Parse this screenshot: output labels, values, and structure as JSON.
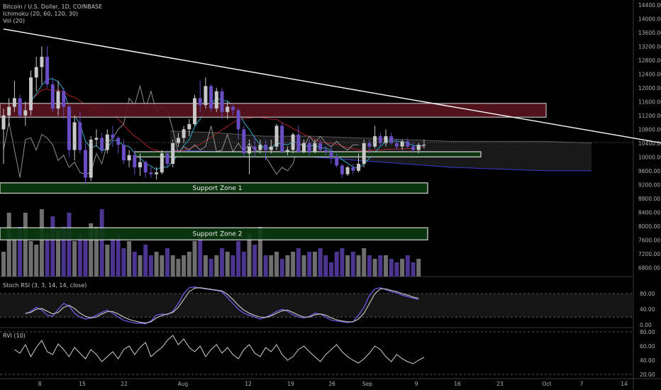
{
  "header": {
    "symbol": "Bitcoin / U.S. Dollar, 1D, COINBASE",
    "ichimoku": "Ichimoku (20, 60, 120, 30)",
    "volume": "Vol (20)"
  },
  "stoch_title": "Stoch RSI (3, 3, 14, 14, close)",
  "rvi_title": "RVI (10)",
  "colors": {
    "up": "#c8c8c8",
    "down": "#6a4cc4",
    "resistance_fill": "#5a1420",
    "resistance_border": "#c0c0c0",
    "support_fill": "#0c3a10",
    "support_border": "#e0e0e0",
    "trendline": "#ffffff",
    "tenkan": "#2aa7c9",
    "kijun": "#a8202a",
    "lagging": "#909090",
    "cloud": "#1c1c1c"
  },
  "chart_data": [
    {
      "type": "candlestick",
      "title": "Bitcoin / U.S. Dollar, 1D, COINBASE",
      "x_ticks": [
        "8",
        "15",
        "22",
        "Aug",
        "12",
        "19",
        "26",
        "Sep",
        "9",
        "16",
        "23",
        "Oct",
        "7",
        "14"
      ],
      "y_ticks": [
        6800,
        7200,
        7600,
        8000,
        8400,
        8800,
        9200,
        9600,
        10000,
        10400,
        10800,
        11200,
        11600,
        12000,
        12400,
        12800,
        13200,
        13600,
        14000,
        14400
      ],
      "ylim": [
        6600,
        14500
      ],
      "candles": [
        {
          "o": 10800,
          "h": 11400,
          "l": 9800,
          "c": 11200
        },
        {
          "o": 11200,
          "h": 11700,
          "l": 10900,
          "c": 11450
        },
        {
          "o": 11450,
          "h": 12200,
          "l": 11300,
          "c": 11700
        },
        {
          "o": 11700,
          "h": 11800,
          "l": 11100,
          "c": 11200
        },
        {
          "o": 11200,
          "h": 11600,
          "l": 10900,
          "c": 11350
        },
        {
          "o": 11350,
          "h": 12500,
          "l": 11200,
          "c": 12300
        },
        {
          "o": 12300,
          "h": 12900,
          "l": 11900,
          "c": 12600
        },
        {
          "o": 12600,
          "h": 13200,
          "l": 12100,
          "c": 12900
        },
        {
          "o": 12900,
          "h": 13200,
          "l": 12000,
          "c": 12100
        },
        {
          "o": 12100,
          "h": 12300,
          "l": 11300,
          "c": 11400
        },
        {
          "o": 11400,
          "h": 12200,
          "l": 11200,
          "c": 11900
        },
        {
          "o": 11900,
          "h": 12000,
          "l": 11100,
          "c": 11450
        },
        {
          "o": 11450,
          "h": 11500,
          "l": 10000,
          "c": 10200
        },
        {
          "o": 10200,
          "h": 11200,
          "l": 9900,
          "c": 11000
        },
        {
          "o": 11000,
          "h": 11300,
          "l": 10100,
          "c": 10200
        },
        {
          "o": 10200,
          "h": 10400,
          "l": 9200,
          "c": 9400
        },
        {
          "o": 9400,
          "h": 10600,
          "l": 9300,
          "c": 10500
        },
        {
          "o": 10500,
          "h": 10800,
          "l": 10300,
          "c": 10550
        },
        {
          "o": 10550,
          "h": 10700,
          "l": 10100,
          "c": 10200
        },
        {
          "o": 10200,
          "h": 10800,
          "l": 10100,
          "c": 10650
        },
        {
          "o": 10650,
          "h": 10900,
          "l": 10300,
          "c": 10550
        },
        {
          "o": 10550,
          "h": 10600,
          "l": 10100,
          "c": 10350
        },
        {
          "o": 10350,
          "h": 10500,
          "l": 9800,
          "c": 9900
        },
        {
          "o": 9900,
          "h": 10200,
          "l": 9700,
          "c": 10050
        },
        {
          "o": 10050,
          "h": 10200,
          "l": 9500,
          "c": 9700
        },
        {
          "o": 9700,
          "h": 10100,
          "l": 9450,
          "c": 9850
        },
        {
          "o": 9850,
          "h": 9900,
          "l": 9400,
          "c": 9550
        },
        {
          "o": 9550,
          "h": 9700,
          "l": 9400,
          "c": 9500
        },
        {
          "o": 9500,
          "h": 9700,
          "l": 9350,
          "c": 9550
        },
        {
          "o": 9550,
          "h": 10200,
          "l": 9500,
          "c": 10100
        },
        {
          "o": 10100,
          "h": 10200,
          "l": 9700,
          "c": 9800
        },
        {
          "o": 9800,
          "h": 10500,
          "l": 9700,
          "c": 10400
        },
        {
          "o": 10400,
          "h": 10700,
          "l": 10300,
          "c": 10550
        },
        {
          "o": 10550,
          "h": 10900,
          "l": 10400,
          "c": 10800
        },
        {
          "o": 10800,
          "h": 11100,
          "l": 10600,
          "c": 10950
        },
        {
          "o": 10950,
          "h": 11800,
          "l": 10900,
          "c": 11700
        },
        {
          "o": 11700,
          "h": 12200,
          "l": 11300,
          "c": 11500
        },
        {
          "o": 11500,
          "h": 12300,
          "l": 11400,
          "c": 12050
        },
        {
          "o": 12050,
          "h": 12100,
          "l": 11300,
          "c": 11400
        },
        {
          "o": 11400,
          "h": 12000,
          "l": 11300,
          "c": 11900
        },
        {
          "o": 11900,
          "h": 12000,
          "l": 11100,
          "c": 11300
        },
        {
          "o": 11300,
          "h": 11600,
          "l": 11100,
          "c": 11450
        },
        {
          "o": 11450,
          "h": 11500,
          "l": 11200,
          "c": 11350
        },
        {
          "o": 11350,
          "h": 11400,
          "l": 10500,
          "c": 10800
        },
        {
          "o": 10800,
          "h": 10900,
          "l": 10000,
          "c": 10100
        },
        {
          "o": 10100,
          "h": 10500,
          "l": 9500,
          "c": 10300
        },
        {
          "o": 10300,
          "h": 10600,
          "l": 10000,
          "c": 10200
        },
        {
          "o": 10200,
          "h": 10500,
          "l": 10100,
          "c": 10350
        },
        {
          "o": 10350,
          "h": 10500,
          "l": 9900,
          "c": 10200
        },
        {
          "o": 10200,
          "h": 10500,
          "l": 10100,
          "c": 10300
        },
        {
          "o": 10300,
          "h": 10950,
          "l": 10200,
          "c": 10900
        },
        {
          "o": 10900,
          "h": 11000,
          "l": 10100,
          "c": 10150
        },
        {
          "o": 10150,
          "h": 10300,
          "l": 10050,
          "c": 10200
        },
        {
          "o": 10200,
          "h": 10700,
          "l": 10100,
          "c": 10650
        },
        {
          "o": 10650,
          "h": 10900,
          "l": 10100,
          "c": 10150
        },
        {
          "o": 10150,
          "h": 10500,
          "l": 10100,
          "c": 10400
        },
        {
          "o": 10400,
          "h": 10500,
          "l": 10050,
          "c": 10150
        },
        {
          "o": 10150,
          "h": 10500,
          "l": 10100,
          "c": 10400
        },
        {
          "o": 10400,
          "h": 10500,
          "l": 10150,
          "c": 10200
        },
        {
          "o": 10200,
          "h": 10300,
          "l": 10050,
          "c": 10150
        },
        {
          "o": 10150,
          "h": 10300,
          "l": 9800,
          "c": 10000
        },
        {
          "o": 10000,
          "h": 10100,
          "l": 9700,
          "c": 9750
        },
        {
          "o": 9750,
          "h": 9800,
          "l": 9400,
          "c": 9500
        },
        {
          "o": 9500,
          "h": 9750,
          "l": 9450,
          "c": 9700
        },
        {
          "o": 9700,
          "h": 9800,
          "l": 9500,
          "c": 9600
        },
        {
          "o": 9600,
          "h": 10100,
          "l": 9550,
          "c": 9800
        },
        {
          "o": 9800,
          "h": 10500,
          "l": 9700,
          "c": 10400
        },
        {
          "o": 10400,
          "h": 10500,
          "l": 10100,
          "c": 10300
        },
        {
          "o": 10300,
          "h": 10900,
          "l": 10250,
          "c": 10600
        },
        {
          "o": 10600,
          "h": 10700,
          "l": 10300,
          "c": 10400
        },
        {
          "o": 10400,
          "h": 10800,
          "l": 10300,
          "c": 10600
        },
        {
          "o": 10600,
          "h": 10700,
          "l": 10350,
          "c": 10400
        },
        {
          "o": 10400,
          "h": 10500,
          "l": 10200,
          "c": 10300
        },
        {
          "o": 10300,
          "h": 10500,
          "l": 10200,
          "c": 10450
        },
        {
          "o": 10450,
          "h": 10550,
          "l": 10250,
          "c": 10300
        },
        {
          "o": 10300,
          "h": 10450,
          "l": 10100,
          "c": 10200
        },
        {
          "o": 10200,
          "h": 10400,
          "l": 10100,
          "c": 10350
        },
        {
          "o": 10350,
          "h": 10500,
          "l": 10250,
          "c": 10350
        }
      ],
      "volumes": [
        0.35,
        0.9,
        0.55,
        0.7,
        0.9,
        0.5,
        0.45,
        0.95,
        0.6,
        0.85,
        0.65,
        0.7,
        0.9,
        0.5,
        0.6,
        0.55,
        0.75,
        0.7,
        0.95,
        0.45,
        0.55,
        0.6,
        0.4,
        0.5,
        0.35,
        0.3,
        0.45,
        0.3,
        0.35,
        0.3,
        0.4,
        0.3,
        0.25,
        0.3,
        0.35,
        0.5,
        0.6,
        0.3,
        0.25,
        0.3,
        0.4,
        0.35,
        0.3,
        0.5,
        0.35,
        0.6,
        0.45,
        0.7,
        0.3,
        0.3,
        0.35,
        0.25,
        0.3,
        0.35,
        0.4,
        0.3,
        0.35,
        0.35,
        0.4,
        0.3,
        0.2,
        0.35,
        0.4,
        0.3,
        0.35,
        0.3,
        0.4,
        0.3,
        0.25,
        0.3,
        0.3,
        0.25,
        0.2,
        0.25,
        0.3,
        0.2,
        0.25
      ],
      "zones": [
        {
          "label": "",
          "kind": "resistance",
          "lo": 11150,
          "hi": 11550
        },
        {
          "label": "",
          "kind": "support",
          "lo": 10000,
          "hi": 10150
        },
        {
          "label": "Support Zone 1",
          "kind": "support",
          "lo": 8950,
          "hi": 9250
        },
        {
          "label": "Support Zone 2",
          "kind": "support",
          "lo": 7600,
          "hi": 7950
        }
      ],
      "trendline": [
        [
          0,
          13700
        ],
        [
          121,
          10300
        ]
      ]
    },
    {
      "type": "line",
      "title": "Stoch RSI (3, 3, 14, 14, close)",
      "y_ticks": [
        "80.00",
        "40.00",
        "0.00"
      ],
      "ylim": [
        -5,
        100
      ],
      "series": [
        {
          "values": [
            28,
            35,
            45,
            38,
            25,
            22,
            40,
            55,
            48,
            30,
            20,
            15,
            18,
            25,
            32,
            38,
            30,
            20,
            12,
            8,
            5,
            4,
            3,
            10,
            25,
            28,
            26,
            35,
            55,
            80,
            95,
            97,
            94,
            92,
            90,
            88,
            85,
            70,
            55,
            40,
            30,
            25,
            20,
            15,
            20,
            26,
            35,
            40,
            35,
            26,
            20,
            18,
            22,
            30,
            28,
            20,
            12,
            10,
            8,
            6,
            8,
            25,
            45,
            75,
            92,
            95,
            90,
            85,
            82,
            76,
            72,
            68,
            65
          ]
        },
        {
          "values": [
            30,
            32,
            40,
            42,
            35,
            28,
            32,
            45,
            50,
            42,
            30,
            22,
            18,
            20,
            28,
            34,
            34,
            28,
            20,
            14,
            10,
            7,
            5,
            8,
            18,
            24,
            28,
            32,
            45,
            65,
            85,
            94,
            95,
            93,
            91,
            89,
            87,
            78,
            65,
            50,
            38,
            30,
            24,
            20,
            19,
            23,
            30,
            36,
            38,
            32,
            25,
            20,
            20,
            26,
            28,
            25,
            18,
            13,
            10,
            8,
            8,
            15,
            30,
            55,
            80,
            92,
            92,
            88,
            85,
            80,
            76,
            71,
            68
          ]
        }
      ]
    },
    {
      "type": "line",
      "title": "RVI (10)",
      "y_ticks": [
        "80.00",
        "60.00",
        "40.00",
        "20.00"
      ],
      "ylim": [
        15,
        85
      ],
      "series": [
        {
          "values": [
            55,
            50,
            62,
            45,
            58,
            68,
            52,
            48,
            63,
            55,
            45,
            58,
            50,
            42,
            55,
            48,
            38,
            45,
            52,
            42,
            55,
            60,
            48,
            58,
            65,
            45,
            52,
            58,
            68,
            75,
            62,
            70,
            58,
            52,
            60,
            45,
            55,
            62,
            50,
            58,
            48,
            42,
            55,
            62,
            50,
            45,
            58,
            52,
            62,
            48,
            40,
            45,
            55,
            60,
            52,
            45,
            38,
            48,
            55,
            62,
            52,
            45,
            40,
            36,
            42,
            50,
            60,
            55,
            45,
            38,
            48,
            42,
            38,
            35,
            40,
            44
          ]
        }
      ]
    }
  ]
}
